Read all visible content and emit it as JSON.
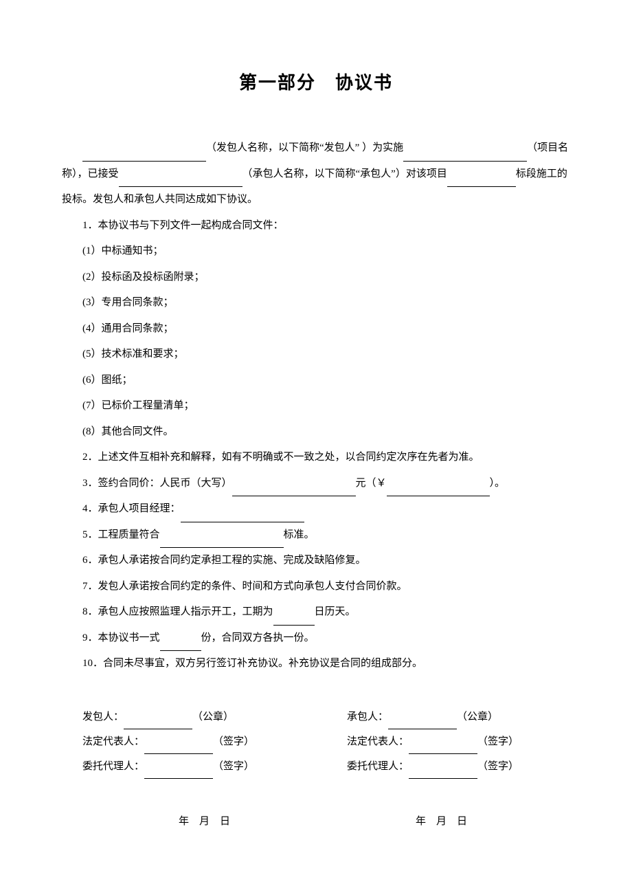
{
  "document": {
    "title": "第一部分　协议书",
    "background_color": "#ffffff",
    "text_color": "#000000",
    "font_family": "SimSun",
    "title_fontsize": 26,
    "body_fontsize": 15,
    "line_height": 2.5
  },
  "intro": {
    "part1_prefix": "",
    "part1_after": "（发包人名称，以下简称“发包人” ）为实施",
    "part1_suffix": "（项目名称），已接受",
    "part2_after": "（承包人名称，以下简称“承包人”）对该项目",
    "part2_suffix": "标段施工的投标。发包人和承包人共同达成如下协议。"
  },
  "items": {
    "item1": "1．本协议书与下列文件一起构成合同文件：",
    "sub1": "(1）中标通知书；",
    "sub2": "(2）投标函及投标函附录；",
    "sub3": "(3）专用合同条款；",
    "sub4": "(4）通用合同条款；",
    "sub5": "(5）技术标准和要求；",
    "sub6": "(6）图纸；",
    "sub7": "(7）已标价工程量清单；",
    "sub8": "(8）其他合同文件。",
    "item2": "2．上述文件互相补充和解释，如有不明确或不一致之处，以合同约定次序在先者为准。",
    "item3_prefix": "3．签约合同价：人民币（大写）",
    "item3_mid": "元（￥",
    "item3_suffix": "）。",
    "item4_prefix": "4．承包人项目经理：",
    "item5_prefix": "5．工程质量符合",
    "item5_suffix": "标准。",
    "item6": "6．承包人承诺按合同约定承担工程的实施、完成及缺陷修复。",
    "item7": "7．发包人承诺按合同约定的条件、时间和方式向承包人支付合同价款。",
    "item8_prefix": "8．承包人应按照监理人指示开工，工期为",
    "item8_suffix": "日历天。",
    "item9_prefix": "9．本协议书一式",
    "item9_suffix": "份，合同双方各执一份。",
    "item10": "10．合同未尽事宜，双方另行签订补充协议。补充协议是合同的组成部分。"
  },
  "signature": {
    "left": {
      "party_label": "发包人：",
      "party_suffix": "（公章）",
      "legal_label": "法定代表人：",
      "legal_suffix": "（签字）",
      "agent_label": "委托代理人：",
      "agent_suffix": "（签字）"
    },
    "right": {
      "party_label": "承包人：",
      "party_suffix": "（公章）",
      "legal_label": "法定代表人：",
      "legal_suffix": "（签字）",
      "agent_label": "委托代理人：",
      "agent_suffix": "（签字）"
    }
  },
  "date": {
    "text": "年　月　日"
  }
}
